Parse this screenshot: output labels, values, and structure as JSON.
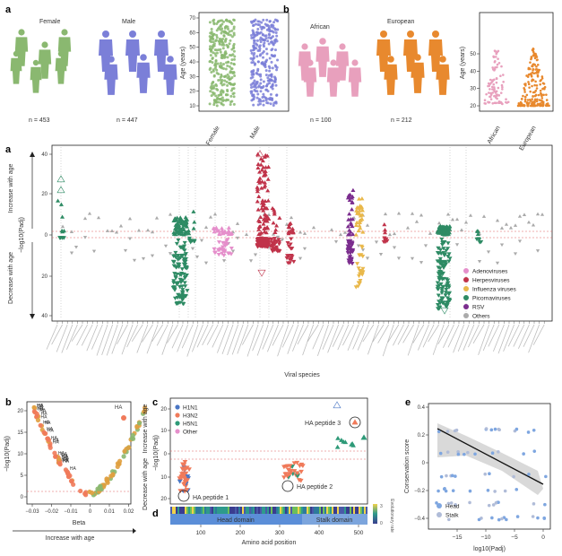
{
  "panels": {
    "top_left": {
      "label": "a",
      "female_label": "Female",
      "male_label": "Male",
      "female_n": "n = 453",
      "male_n": "n = 447",
      "swarm": {
        "ylabel": "Age (years)",
        "yticks": [
          "10",
          "20",
          "30",
          "40",
          "50",
          "60",
          "70"
        ],
        "xticks": [
          "Female",
          "Male"
        ]
      }
    },
    "top_right": {
      "label": "b",
      "african_label": "African",
      "european_label": "European",
      "african_n": "n = 100",
      "european_n": "n = 212",
      "swarm": {
        "ylabel": "Age (years)",
        "yticks": [
          "20",
          "30",
          "40",
          "50"
        ],
        "xticks": [
          "African",
          "European"
        ]
      }
    },
    "middle": {
      "label": "a",
      "ylabel_main": "−log10(Padj)",
      "ylabel_up": "Increase with age",
      "ylabel_down": "Decrease with age",
      "yticks": [
        "40",
        "20",
        "0",
        "20",
        "40"
      ],
      "xlabel": "Viral species",
      "legend": [
        {
          "name": "Adenoviruses",
          "color": "#e58fcb"
        },
        {
          "name": "Herpesviruses",
          "color": "#c0334a"
        },
        {
          "name": "Influenza viruses",
          "color": "#e9b84a"
        },
        {
          "name": "Picornaviruses",
          "color": "#2e8b64"
        },
        {
          "name": "RSV",
          "color": "#7b2d8e"
        },
        {
          "name": "Others",
          "color": "#aaaaaa"
        }
      ]
    },
    "bottom_left": {
      "label": "b",
      "ylabel": "−log10(Padj)",
      "xlabel": "Beta",
      "xsub": "Increase with age",
      "xticks": [
        "−0.03",
        "−0.02",
        "−0.01",
        "0",
        "0.01",
        "0.02"
      ],
      "yticks": [
        "0",
        "5",
        "10",
        "15",
        "20"
      ],
      "point_label": "HA"
    },
    "bottom_mid": {
      "label_c": "c",
      "label_d": "d",
      "legend": [
        {
          "name": "H1N1",
          "color": "#4a76c4"
        },
        {
          "name": "H3N2",
          "color": "#f07a5a"
        },
        {
          "name": "H5N1",
          "color": "#2e9a78"
        },
        {
          "name": "Other",
          "color": "#e58fcb"
        }
      ],
      "ylabel_main": "−log10(Padj)",
      "ylabel_up": "Increase with age",
      "ylabel_down": "Decrease with age",
      "yticks": [
        "20",
        "10",
        "0",
        "10",
        "20"
      ],
      "annot1": "HA peptide 1",
      "annot2": "HA peptide 2",
      "annot3": "HA peptide 3",
      "head_domain": "Head domain",
      "stalk_domain": "Stalk domain",
      "xlabel": "Amino acid position",
      "xticks": [
        "100",
        "200",
        "300",
        "400",
        "500"
      ],
      "evo_label": "Evolutionary rate",
      "evo_ticks": [
        "3",
        "0"
      ]
    },
    "bottom_right": {
      "label": "e",
      "ylabel": "Conservation score",
      "xlabel": "log10(Padj)",
      "xticks": [
        "−15",
        "−10",
        "−5",
        "0"
      ],
      "yticks": [
        "0.4",
        "0.2",
        "0",
        "−0.2",
        "−0.4"
      ],
      "legend": [
        {
          "name": "Head",
          "color": "#7ea6e0"
        },
        {
          "name": "Stalk",
          "color": "#b0bcd8"
        }
      ]
    }
  },
  "chart_data": [
    {
      "type": "scatter",
      "title": "",
      "ylabel": "Age (years)",
      "categories": [
        "Female",
        "Male"
      ],
      "n": [
        453,
        447
      ],
      "ylim": [
        10,
        70
      ]
    },
    {
      "type": "scatter",
      "ylabel": "Age (years)",
      "categories": [
        "African",
        "European"
      ],
      "n": [
        100,
        212
      ],
      "ylim": [
        18,
        50
      ]
    },
    {
      "type": "scatter",
      "ylabel": "−log10(Padj)",
      "xlabel": "Viral species",
      "groups": [
        "Adenoviruses",
        "Herpesviruses",
        "Influenza viruses",
        "Picornaviruses",
        "RSV",
        "Others"
      ],
      "ylim": [
        -40,
        40
      ]
    },
    {
      "type": "scatter",
      "xlabel": "Beta",
      "ylabel": "−log10(Padj)",
      "xlim": [
        -0.03,
        0.025
      ],
      "ylim": [
        0,
        20
      ]
    },
    {
      "type": "scatter",
      "xlabel": "Amino acid position",
      "ylabel": "−log10(Padj)",
      "series": [
        {
          "name": "H1N1"
        },
        {
          "name": "H3N2"
        },
        {
          "name": "H5N1"
        },
        {
          "name": "Other"
        }
      ],
      "xlim": [
        0,
        560
      ],
      "ylim": [
        -20,
        20
      ]
    },
    {
      "type": "scatter",
      "xlabel": "log10(Padj)",
      "ylabel": "Conservation score",
      "series": [
        {
          "name": "Head"
        },
        {
          "name": "Stalk"
        }
      ],
      "xlim": [
        -18,
        0
      ],
      "ylim": [
        -0.5,
        0.4
      ]
    }
  ]
}
